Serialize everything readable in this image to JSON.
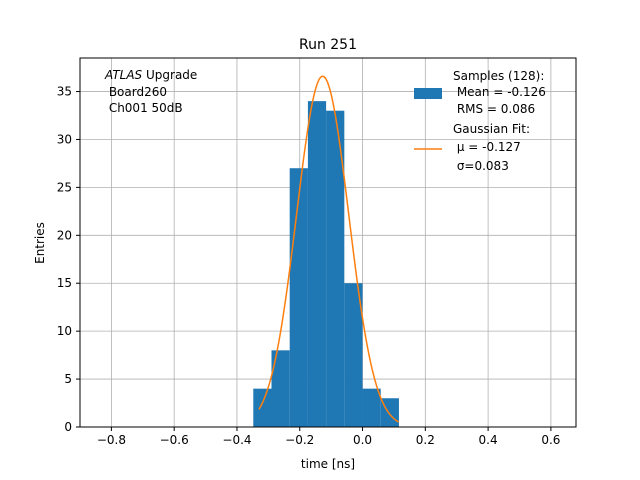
{
  "chart_data": {
    "type": "bar",
    "title": "Run 251",
    "xlabel": "time [ns]",
    "ylabel": "Entries",
    "xlim": [
      -0.9,
      0.68
    ],
    "ylim": [
      0,
      38.5
    ],
    "xticks": [
      -0.8,
      -0.6,
      -0.4,
      -0.2,
      0.0,
      0.2,
      0.4,
      0.6
    ],
    "xtick_labels": [
      "−0.8",
      "−0.6",
      "−0.4",
      "−0.2",
      "0.0",
      "0.2",
      "0.4",
      "0.6"
    ],
    "yticks": [
      0,
      5,
      10,
      15,
      20,
      25,
      30,
      35
    ],
    "ytick_labels": [
      "0",
      "5",
      "10",
      "15",
      "20",
      "25",
      "30",
      "35"
    ],
    "grid": true,
    "histogram": {
      "name": "Samples (128):",
      "color": "#1f77b4",
      "bin_edges": [
        -0.348,
        -0.29,
        -0.232,
        -0.174,
        -0.116,
        -0.058,
        0.0,
        0.058,
        0.116
      ],
      "counts": [
        4,
        8,
        27,
        34,
        33,
        15,
        4,
        3
      ]
    },
    "fit": {
      "name": "Gaussian Fit:",
      "color": "#ff7f0e",
      "mu": -0.127,
      "sigma": 0.083,
      "amplitude": 36.6,
      "x_range": [
        -0.33,
        0.115
      ]
    },
    "annotation": {
      "italic": "ATLAS",
      "rest": " Upgrade",
      "line2": " Board260",
      "line3": " Ch001 50dB"
    },
    "legend": {
      "placement": "top-right",
      "hist_lines": [
        "Samples (128):",
        " Mean = -0.126",
        " RMS = 0.086"
      ],
      "fit_lines": [
        "Gaussian Fit:",
        " μ = -0.127",
        " σ=0.083"
      ]
    }
  }
}
